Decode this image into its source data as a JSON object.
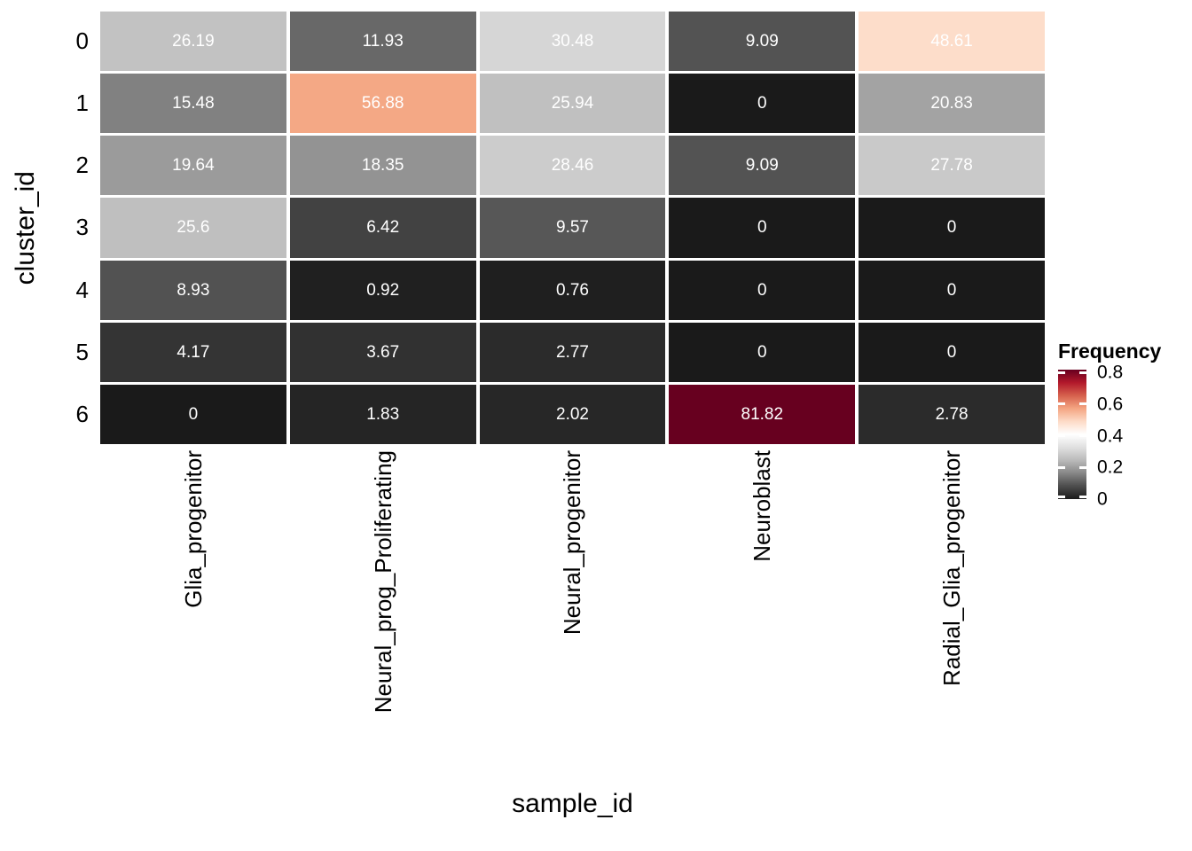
{
  "chart_data": {
    "type": "heatmap",
    "title": "",
    "xlabel": "sample_id",
    "ylabel": "cluster_id",
    "columns": [
      "Glia_progenitor",
      "Neural_prog_Proliferating",
      "Neural_progenitor",
      "Neuroblast",
      "Radial_Glia_progenitor"
    ],
    "rows": [
      "0",
      "1",
      "2",
      "3",
      "4",
      "5",
      "6"
    ],
    "values": [
      [
        26.19,
        11.93,
        30.48,
        9.09,
        48.61
      ],
      [
        15.48,
        56.88,
        25.94,
        0,
        20.83
      ],
      [
        19.64,
        18.35,
        28.46,
        9.09,
        27.78
      ],
      [
        25.6,
        6.42,
        9.57,
        0,
        0
      ],
      [
        8.93,
        0.92,
        0.76,
        0,
        0
      ],
      [
        4.17,
        3.67,
        2.77,
        0,
        0
      ],
      [
        0,
        1.83,
        2.02,
        81.82,
        2.78
      ]
    ],
    "value_unit": "percent_of_frequency",
    "legend": {
      "title": "Frequency",
      "ticks": [
        0,
        0.2,
        0.4,
        0.6,
        0.8
      ],
      "domain": [
        0,
        0.8182
      ],
      "position": "right"
    },
    "palette": [
      "#1A1A1A",
      "#4D4D4D",
      "#878787",
      "#BABABA",
      "#E0E0E0",
      "#FFFFFF",
      "#FDDBC7",
      "#F4A582",
      "#D6604D",
      "#B2182B",
      "#67001F"
    ],
    "colors": {
      "cell_text": "#FFFFFF",
      "axis_text": "#000000",
      "background": "#FFFFFF"
    },
    "grid": "off"
  }
}
